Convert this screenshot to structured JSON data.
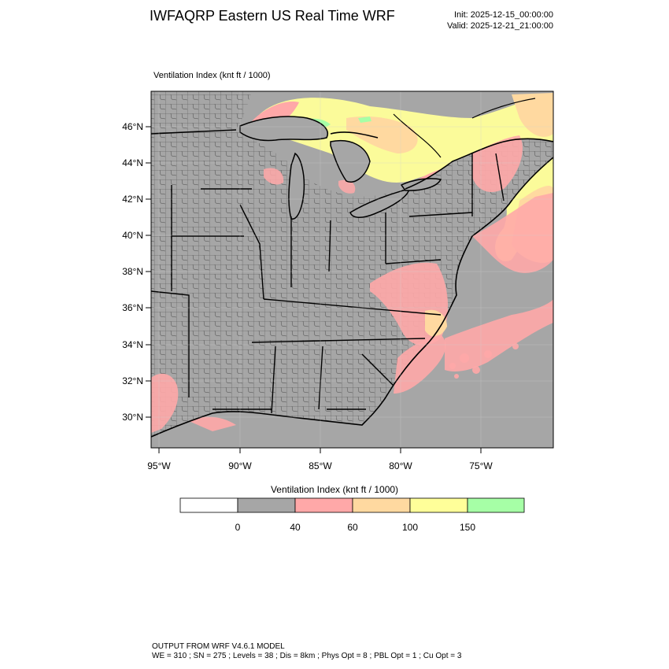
{
  "header": {
    "title": "IWFAQRP Eastern US Real Time WRF",
    "init": "Init: 2025-12-15_00:00:00",
    "valid": "Valid: 2025-12-21_21:00:00"
  },
  "field": {
    "label": "Ventilation Index   (knt ft / 1000)"
  },
  "axes": {
    "lat_labels": [
      "46°N",
      "44°N",
      "42°N",
      "40°N",
      "38°N",
      "36°N",
      "34°N",
      "32°N",
      "30°N"
    ],
    "lon_labels": [
      "95°W",
      "90°W",
      "85°W",
      "80°W",
      "75°W"
    ]
  },
  "colors": {
    "land": "#a6a6a6",
    "water": "#a6a6a6",
    "lt40": "#a6a6a6",
    "c40_60": "#ffa8a8",
    "c60_100": "#ffd9a0",
    "c100_150": "#ffff99",
    "c150": "#a6ffa6",
    "borders": "#000000"
  },
  "legend": {
    "title": "Ventilation Index  (knt ft / 1000)",
    "thresholds": [
      "0",
      "40",
      "60",
      "100",
      "150"
    ],
    "colors": [
      "#ffffff",
      "#a6a6a6",
      "#ffa8a8",
      "#ffd9a0",
      "#ffff99",
      "#a6ffa6"
    ]
  },
  "footer": {
    "line1": "OUTPUT FROM WRF V4.6.1 MODEL",
    "line2": "WE = 310 ; SN = 275 ; Levels = 38 ; Dis = 8km ; Phys Opt = 8 ; PBL Opt = 1 ; Cu Opt = 3"
  }
}
